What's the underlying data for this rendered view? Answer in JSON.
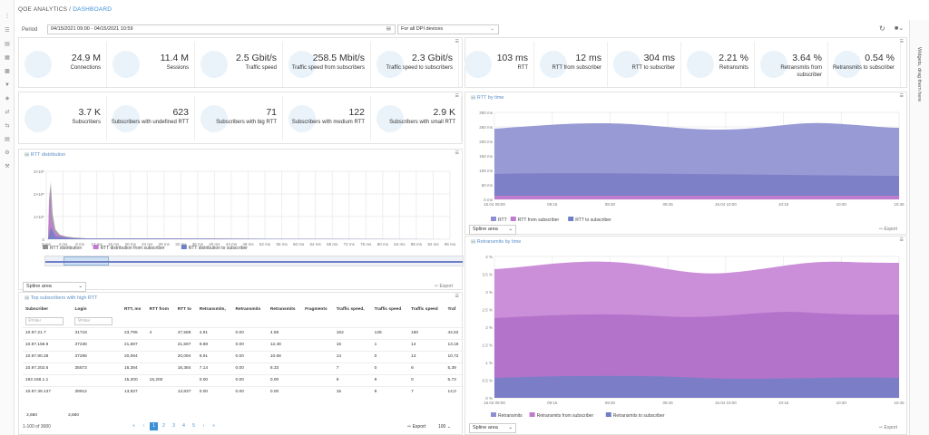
{
  "header": {
    "app": "QOE ANALYTICS",
    "separator": "/",
    "page": "DASHBOARD"
  },
  "filters": {
    "period_label": "Period",
    "period_value": "04/15/2021 09:00 - 04/15/2021 10:59",
    "devices_value": "For all DPI devices"
  },
  "side_tab": "Widgets, drag them here",
  "kpis_top": [
    {
      "value": "24.9 M",
      "label": "Connections"
    },
    {
      "value": "11.4 M",
      "label": "Sessions"
    },
    {
      "value": "2.5 Gbit/s",
      "label": "Traffic speed"
    },
    {
      "value": "258.5 Mbit/s",
      "label": "Traffic speed from subscribers"
    },
    {
      "value": "2.3 Gbit/s",
      "label": "Traffic speed to subscribers"
    },
    {
      "value": "103 ms",
      "label": "RTT"
    },
    {
      "value": "12 ms",
      "label": "RTT from subscriber"
    },
    {
      "value": "304 ms",
      "label": "RTT to subscriber"
    },
    {
      "value": "2.21 %",
      "label": "Retransmits"
    },
    {
      "value": "3.64 %",
      "label": "Retransmits from subscriber"
    },
    {
      "value": "0.54 %",
      "label": "Retransmits to subscriber"
    }
  ],
  "kpis_second": [
    {
      "value": "3.7 K",
      "label": "Subscribers"
    },
    {
      "value": "623",
      "label": "Subscribers with undefined RTT"
    },
    {
      "value": "71",
      "label": "Subscribers with big RTT"
    },
    {
      "value": "122",
      "label": "Subscribers with medium RTT"
    },
    {
      "value": "2.9 K",
      "label": "Subscribers with small RTT"
    }
  ],
  "rtt_distribution": {
    "title": "RTT distribution",
    "y_ticks": [
      "3×10⁵",
      "2×10⁵",
      "1×10⁵",
      "0"
    ],
    "x_ticks": [
      "0 ms",
      "4 ms",
      "8 ms",
      "12 ms",
      "16 ms",
      "20 ms",
      "24 ms",
      "28 ms",
      "32 ms",
      "36 ms",
      "40 ms",
      "44 ms",
      "48 ms",
      "52 ms",
      "56 ms",
      "60 ms",
      "64 ms",
      "68 ms",
      "72 ms",
      "76 ms",
      "80 ms",
      "84 ms",
      "88 ms",
      "92 ms",
      "96 ms"
    ],
    "legend": [
      "RTT distribution",
      "RTT distribution from subscriber",
      "RTT distribution to subscriber"
    ],
    "chart_type": "Spline area",
    "export": "Export"
  },
  "rtt_by_time": {
    "title": "RTT by time",
    "y_ticks": [
      "300 ms",
      "250 ms",
      "200 ms",
      "150 ms",
      "100 ms",
      "50 ms",
      "0 ms"
    ],
    "x_ticks": [
      "15.04 09:00",
      "09:15",
      "09:30",
      "09:45",
      "15.04 10:00",
      "10:15",
      "10:30",
      "10:45"
    ],
    "legend": [
      "RTT",
      "RTT from subscriber",
      "RTT to subscriber"
    ],
    "chart_type": "Spline area",
    "export": "Export"
  },
  "retransmits_by_time": {
    "title": "Retransmits by time",
    "y_ticks": [
      "4 %",
      "3.5 %",
      "3 %",
      "2.5 %",
      "2 %",
      "1.5 %",
      "1 %",
      "0.5 %",
      "0 %"
    ],
    "x_ticks": [
      "15.04 09:00",
      "09:15",
      "09:30",
      "09:45",
      "15.04 10:00",
      "10:15",
      "10:30",
      "10:45"
    ],
    "legend": [
      "Retransmits",
      "Retransmits from subscriber",
      "Retransmits to subscriber"
    ],
    "chart_type": "Spline area",
    "export": "Export"
  },
  "table": {
    "title": "Top subscribers with high RTT",
    "columns": [
      "Subscriber",
      "Login",
      "RTT, ms",
      "RTT from",
      "RTT to",
      "Retransmits,",
      "Retransmits",
      "Retransmits",
      "Fragments",
      "Traffic speed,",
      "Traffic speed",
      "Traffic speed",
      "Traf"
    ],
    "filter_placeholder": "Filter",
    "rows": [
      [
        "10.97.21.7",
        "31718",
        "23,795",
        "4",
        "47,588",
        "4.91",
        "0.00",
        "4.58",
        "",
        "162",
        "128",
        "160",
        "44,52"
      ],
      [
        "10.97.158.9",
        "37236",
        "21,597",
        "",
        "21,597",
        "9.88",
        "0.00",
        "12.48",
        "",
        "15",
        "1",
        "14",
        "13,18"
      ],
      [
        "10.97.80.28",
        "37285",
        "20,094",
        "",
        "20,094",
        "9.91",
        "0.00",
        "10.68",
        "",
        "14",
        "0",
        "13",
        "10,72"
      ],
      [
        "10.97.202.6",
        "35573",
        "16,384",
        "",
        "16,384",
        "7.14",
        "0.00",
        "8.33",
        "",
        "7",
        "0",
        "6",
        "5,39"
      ],
      [
        "192.168.1.1",
        "",
        "15,200",
        "15,200",
        "",
        "0.00",
        "0.00",
        "0.00",
        "",
        "9",
        "9",
        "0",
        "5,73"
      ],
      [
        "10.97.39.137",
        "39912",
        "13,837",
        "",
        "13,837",
        "0.00",
        "0.00",
        "0.00",
        "",
        "15",
        "9",
        "7",
        "14,0"
      ]
    ],
    "totals": [
      "3,680",
      "3,680"
    ],
    "range": "1-100 of 3680",
    "pages": [
      "«",
      "‹",
      "1",
      "2",
      "3",
      "4",
      "5",
      "›",
      "»"
    ],
    "export": "Export",
    "per_page": "100"
  },
  "colors": {
    "accent": "#3d8fd6",
    "rtt": "#8d8fd0",
    "rtt_from": "#c07ad0",
    "rtt_to": "#6f7fc6",
    "dist": "#8e8e8e"
  }
}
